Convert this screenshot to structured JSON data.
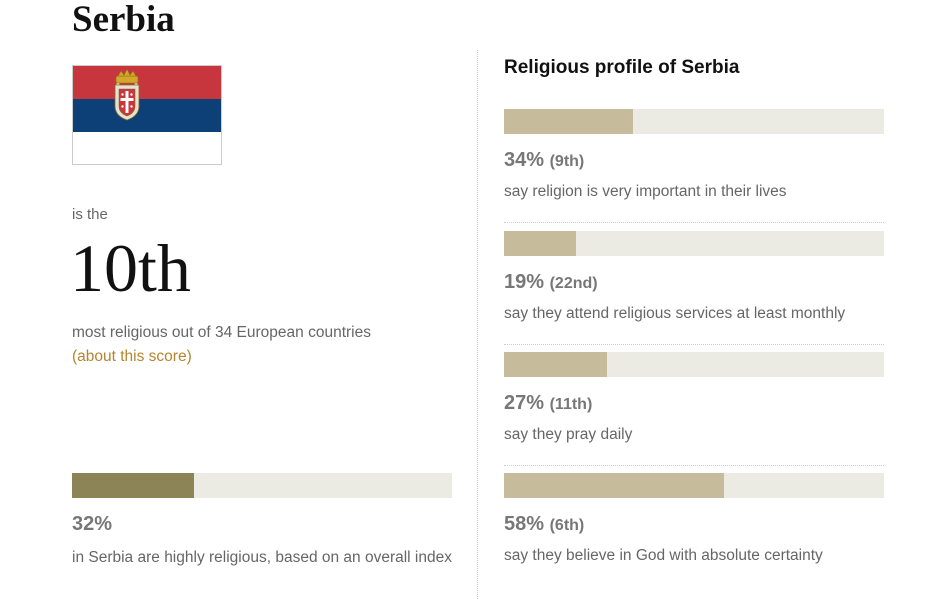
{
  "country": "Serbia",
  "intro": "is the",
  "rank": "10th",
  "rank_description": "most religious out of 34 European countries",
  "about_link": "(about this score)",
  "overall": {
    "value_label": "32%",
    "value": 32,
    "description": "in Serbia are highly religious, based on an overall index",
    "color": "#8c8457"
  },
  "colors": {
    "track": "#ecebe3",
    "stat_fill": "#c6bc9c",
    "flag_red": "#c6363c",
    "flag_blue": "#0c4076",
    "flag_white": "#ffffff"
  },
  "profile_heading": "Religious profile of Serbia",
  "chart_data": {
    "type": "bar",
    "title": "Religious profile of Serbia",
    "ylim": [
      0,
      100
    ],
    "categories": [
      "say religion is very important in their lives",
      "say they attend religious services at least monthly",
      "say they pray daily",
      "say they believe in God with absolute certainty"
    ],
    "values": [
      34,
      19,
      27,
      58
    ],
    "value_labels": [
      "34%",
      "19%",
      "27%",
      "58%"
    ],
    "rank_labels": [
      "(9th)",
      "(22nd)",
      "(11th)",
      "(6th)"
    ]
  }
}
